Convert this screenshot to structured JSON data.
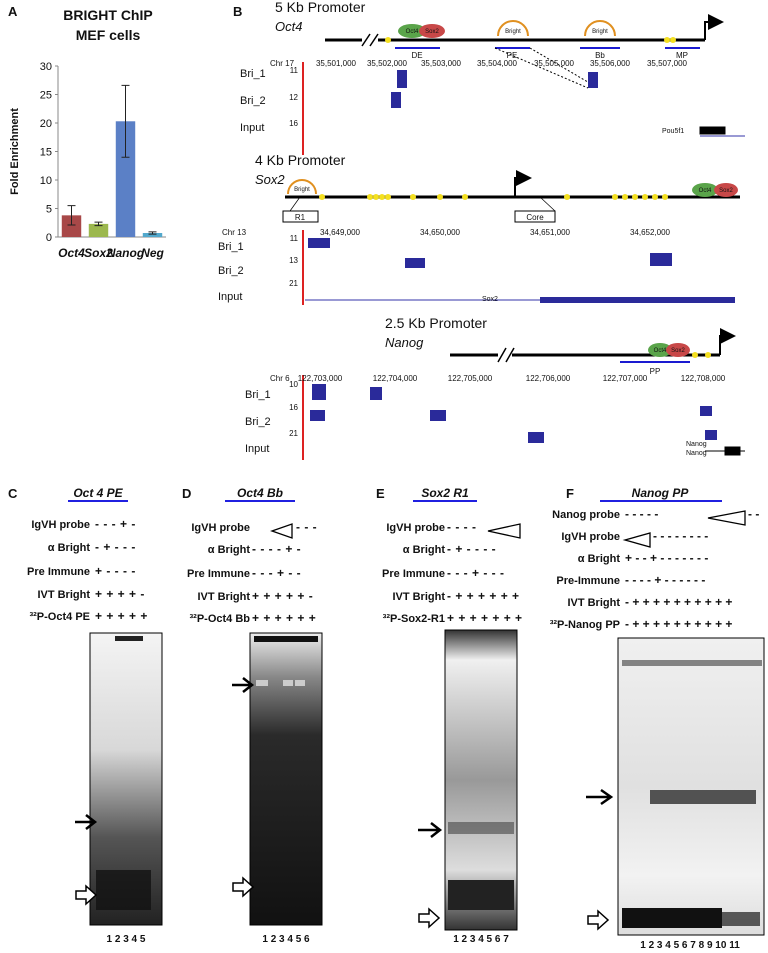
{
  "chart_data": {
    "type": "bar",
    "panel": "A",
    "title": "BRIGHT ChIP",
    "subtitle": "MEF cells",
    "y_label": "Fold Enrichment",
    "categories": [
      "Oct4",
      "Sox2",
      "Nanog",
      "Neg"
    ],
    "values": [
      3.8,
      2.3,
      20.3,
      0.7
    ],
    "errors": [
      1.7,
      0.3,
      6.3,
      0.2
    ],
    "colors": [
      "#a84848",
      "#9cb84e",
      "#5b80c6",
      "#52a8cc"
    ],
    "ylim": [
      0,
      30
    ],
    "yticks": [
      0,
      5,
      10,
      15,
      20,
      25,
      30
    ]
  },
  "panel_b": {
    "label": "B",
    "oct4": {
      "title": "5 Kb Promoter",
      "gene": "Oct4",
      "factors": [
        "Oct4",
        "Sox2",
        "Bright",
        "Bright"
      ],
      "regions": [
        "DE",
        "PE",
        "Bb",
        "MP"
      ],
      "chrom": "Chr 17",
      "coords": [
        "35,501,000",
        "35,502,000",
        "35,503,000",
        "35,504,000",
        "35,505,000",
        "35,506,000",
        "35,507,000"
      ],
      "tracks": [
        "Bri_1",
        "Bri_2",
        "Input"
      ],
      "scale": [
        "11",
        "12",
        "16"
      ],
      "annotation": [
        "Pou5f1"
      ]
    },
    "sox2": {
      "title": "4 Kb Promoter",
      "gene": "Sox2",
      "factors": [
        "Bright",
        "Oct4",
        "Sox2"
      ],
      "regions": [
        "R1",
        "Core"
      ],
      "chrom": "Chr 13",
      "coords": [
        "34,649,000",
        "34,650,000",
        "34,651,000",
        "34,652,000"
      ],
      "tracks": [
        "Bri_1",
        "Bri_2",
        "Input"
      ],
      "scale": [
        "11",
        "13",
        "21"
      ],
      "annotation": [
        "Sox2"
      ]
    },
    "nanog": {
      "title": "2.5 Kb Promoter",
      "gene": "Nanog",
      "factors": [
        "Oct4",
        "Sox2"
      ],
      "regions": [
        "PP"
      ],
      "chrom": "Chr 6",
      "coords": [
        "122,703,000",
        "122,704,000",
        "122,705,000",
        "122,706,000",
        "122,707,000",
        "122,708,000"
      ],
      "tracks": [
        "Bri_1",
        "Bri_2",
        "Input"
      ],
      "scale": [
        "10",
        "16",
        "21"
      ],
      "annotation": [
        "Nanog",
        "Nanog"
      ]
    }
  },
  "emsa": [
    {
      "label": "C",
      "title": "Oct 4 PE",
      "rows": [
        {
          "label": "IgVH probe",
          "signs": "- - - + -"
        },
        {
          "label": "α Bright",
          "signs": "- + - - -"
        },
        {
          "label": "Pre Immune",
          "signs": "+ - - - -"
        },
        {
          "label": "IVT Bright",
          "signs": "+ + + + -"
        },
        {
          "label": "³²P-Oct4 PE",
          "signs": "+ + + + +"
        }
      ],
      "lanes": "1 2 3 4 5"
    },
    {
      "label": "D",
      "title": "Oct4 Bb",
      "rows": [
        {
          "label": "IgVH probe",
          "signs": "- - -"
        },
        {
          "label": "α Bright",
          "signs": "- - - - + -"
        },
        {
          "label": "Pre Immune",
          "signs": "- - - + - -"
        },
        {
          "label": "IVT Bright",
          "signs": "+ + + + + -"
        },
        {
          "label": "³²P-Oct4 Bb",
          "signs": "+ + + + + +"
        }
      ],
      "lanes": "1 2 3 4 5 6"
    },
    {
      "label": "E",
      "title": "Sox2 R1",
      "rows": [
        {
          "label": "IgVH probe",
          "signs": "- - - -"
        },
        {
          "label": "α Bright",
          "signs": "- + - - - -"
        },
        {
          "label": "Pre Immune",
          "signs": "- - - + - - -"
        },
        {
          "label": "IVT Bright",
          "signs": "- + + + + + +"
        },
        {
          "label": "³²P-Sox2-R1",
          "signs": "+ + + + + + +"
        }
      ],
      "lanes": "1 2 3 4 5 6 7"
    },
    {
      "label": "F",
      "title": "Nanog PP",
      "rows": [
        {
          "label": "Nanog probe",
          "signs": "- - - - -",
          "signs_after": "- -"
        },
        {
          "label": "IgVH probe",
          "signs": "- - - - - - - -"
        },
        {
          "label": "α Bright",
          "signs": "+ - - + - - - - - - -"
        },
        {
          "label": "Pre-Immune",
          "signs": "- - - - + - - - - - -"
        },
        {
          "label": "IVT Bright",
          "signs": "- + + + + + + + + + +"
        },
        {
          "label": "³²P-Nanog PP",
          "signs": "- + + + + + + + + + +"
        }
      ],
      "lanes": "1 2 3 4 5 6 7 8 9 10 11"
    }
  ]
}
